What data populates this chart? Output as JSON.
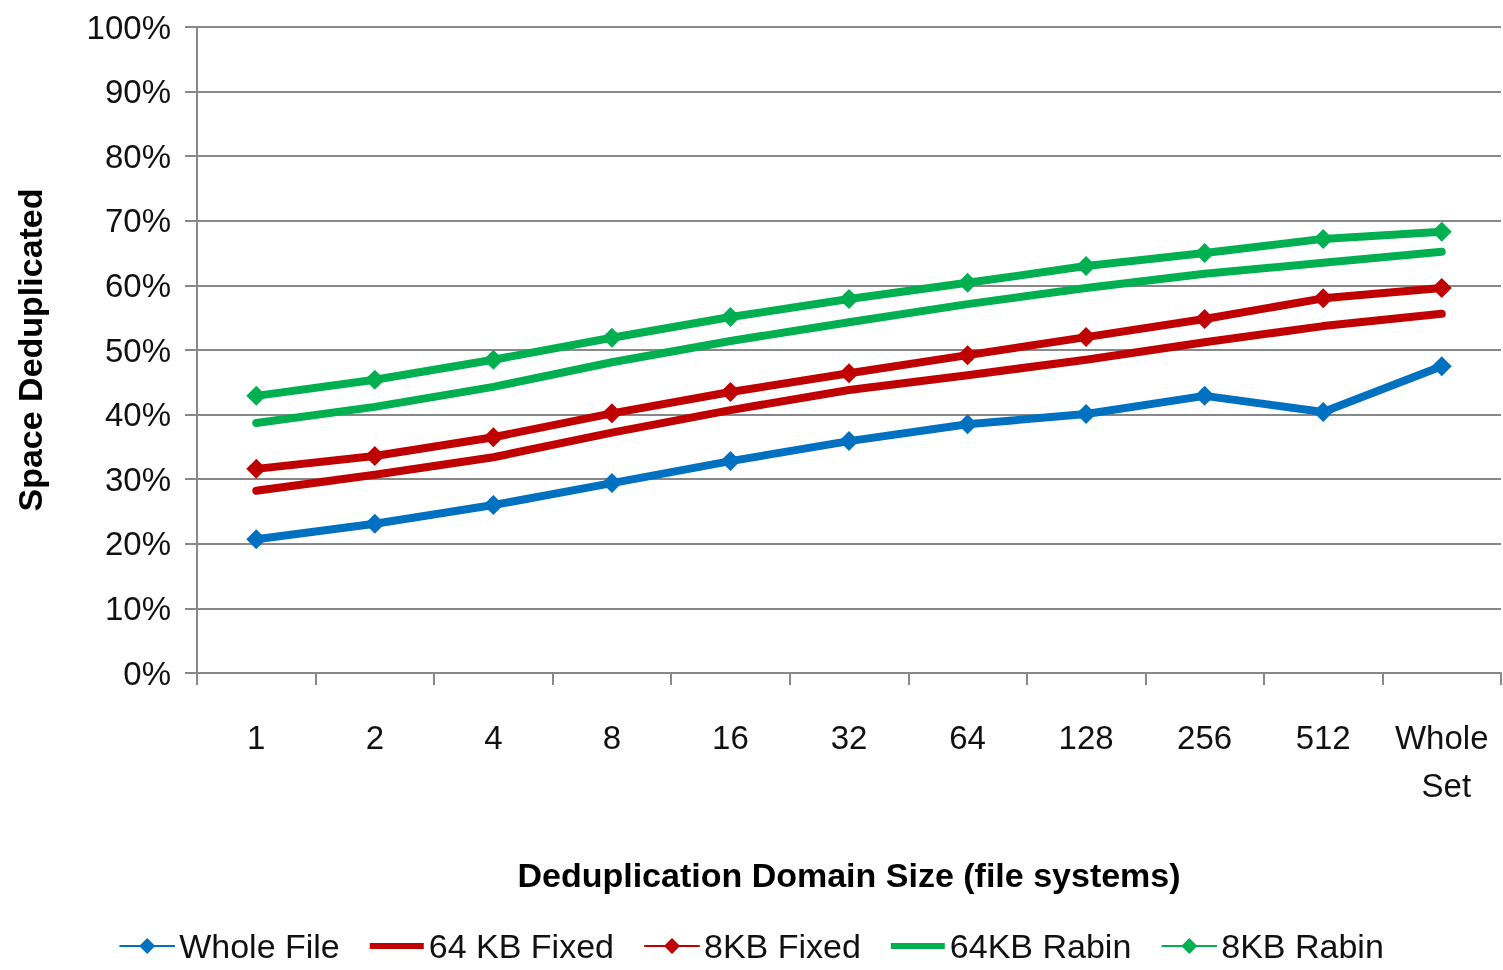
{
  "chart_data": {
    "type": "line",
    "xlabel": "Deduplication Domain Size (file systems)",
    "ylabel": "Space Deduplicated",
    "categories": [
      "1",
      "2",
      "4",
      "8",
      "16",
      "32",
      "64",
      "128",
      "256",
      "512",
      "Whole Set"
    ],
    "series": [
      {
        "name": "Whole File",
        "color": "#0070c0",
        "marker": "diamond",
        "values": [
          20.7,
          23.1,
          26.0,
          29.4,
          32.8,
          35.9,
          38.5,
          40.1,
          42.9,
          40.4,
          47.5
        ]
      },
      {
        "name": "64 KB Fixed",
        "color": "#c00000",
        "marker": "none",
        "values": [
          28.2,
          30.7,
          33.4,
          37.2,
          40.7,
          43.8,
          46.1,
          48.5,
          51.2,
          53.7,
          55.6
        ]
      },
      {
        "name": "8KB Fixed",
        "color": "#c00000",
        "marker": "diamond",
        "values": [
          31.6,
          33.6,
          36.5,
          40.2,
          43.5,
          46.4,
          49.2,
          52.0,
          54.8,
          58.0,
          59.6
        ]
      },
      {
        "name": "64KB Rabin",
        "color": "#00b050",
        "marker": "none",
        "values": [
          38.7,
          41.2,
          44.3,
          48.1,
          51.4,
          54.3,
          57.1,
          59.6,
          61.8,
          63.5,
          65.2
        ]
      },
      {
        "name": "8KB Rabin",
        "color": "#00b050",
        "marker": "diamond",
        "values": [
          42.9,
          45.4,
          48.5,
          51.9,
          55.1,
          57.9,
          60.4,
          63.0,
          65.0,
          67.2,
          68.3
        ]
      }
    ],
    "ylim": [
      0,
      100
    ],
    "yticks": [
      {
        "value": 0,
        "label": "0%"
      },
      {
        "value": 10,
        "label": "10%"
      },
      {
        "value": 20,
        "label": "20%"
      },
      {
        "value": 30,
        "label": "30%"
      },
      {
        "value": 40,
        "label": "40%"
      },
      {
        "value": 50,
        "label": "50%"
      },
      {
        "value": 60,
        "label": "60%"
      },
      {
        "value": 70,
        "label": "70%"
      },
      {
        "value": 80,
        "label": "80%"
      },
      {
        "value": 90,
        "label": "90%"
      },
      {
        "value": 100,
        "label": "100%"
      }
    ],
    "grid": "y",
    "legend": "bottom",
    "line_style": "solid"
  }
}
